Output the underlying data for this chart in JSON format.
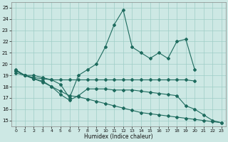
{
  "xlabel": "Humidex (Indice chaleur)",
  "xlim": [
    -0.5,
    23.5
  ],
  "ylim": [
    14.5,
    25.5
  ],
  "xticks": [
    0,
    1,
    2,
    3,
    4,
    5,
    6,
    7,
    8,
    9,
    10,
    11,
    12,
    13,
    14,
    15,
    16,
    17,
    18,
    19,
    20,
    21,
    22,
    23
  ],
  "yticks": [
    15,
    16,
    17,
    18,
    19,
    20,
    21,
    22,
    23,
    24,
    25
  ],
  "bg_color": "#cde8e4",
  "grid_color": "#9ecdc6",
  "line_color": "#1e6b5e",
  "line1_x": [
    0,
    1,
    2,
    3,
    4,
    5,
    6,
    7,
    8,
    9,
    10,
    11,
    12,
    13,
    14,
    15,
    16,
    17,
    18,
    19,
    20
  ],
  "line1_y": [
    19.5,
    19.0,
    19.0,
    18.8,
    18.6,
    18.2,
    17.0,
    19.0,
    19.5,
    20.0,
    21.5,
    23.5,
    24.8,
    21.5,
    21.0,
    20.5,
    21.0,
    20.5,
    22.0,
    22.2,
    19.5
  ],
  "line2_x": [
    0,
    1,
    2,
    3,
    4,
    5,
    6,
    7,
    8,
    9,
    10,
    11,
    12,
    13,
    14,
    15,
    16,
    17,
    18,
    19,
    20
  ],
  "line2_y": [
    19.2,
    19.0,
    18.8,
    18.7,
    18.6,
    18.6,
    18.6,
    18.6,
    18.6,
    18.6,
    18.6,
    18.6,
    18.6,
    18.6,
    18.6,
    18.6,
    18.6,
    18.6,
    18.6,
    18.6,
    18.5
  ],
  "line3_x": [
    0,
    1,
    2,
    3,
    4,
    5,
    6,
    7,
    8,
    9,
    10,
    11,
    12,
    13,
    14,
    15,
    16,
    17,
    18,
    19,
    20,
    21,
    22,
    23
  ],
  "line3_y": [
    19.4,
    19.0,
    18.7,
    18.4,
    18.0,
    17.6,
    17.2,
    17.1,
    16.9,
    16.7,
    16.5,
    16.3,
    16.1,
    15.9,
    15.7,
    15.6,
    15.5,
    15.4,
    15.3,
    15.2,
    15.1,
    15.0,
    14.9,
    14.8
  ],
  "line4_x": [
    0,
    1,
    2,
    3,
    4,
    5,
    6,
    7,
    8,
    9,
    10,
    11,
    12,
    13,
    14,
    15,
    16,
    17,
    18,
    19,
    20,
    21,
    22,
    23
  ],
  "line4_y": [
    19.4,
    19.0,
    18.7,
    18.5,
    18.0,
    17.3,
    16.8,
    17.2,
    17.8,
    17.8,
    17.8,
    17.7,
    17.7,
    17.7,
    17.6,
    17.5,
    17.4,
    17.3,
    17.2,
    16.3,
    16.0,
    15.5,
    15.0,
    14.8
  ]
}
